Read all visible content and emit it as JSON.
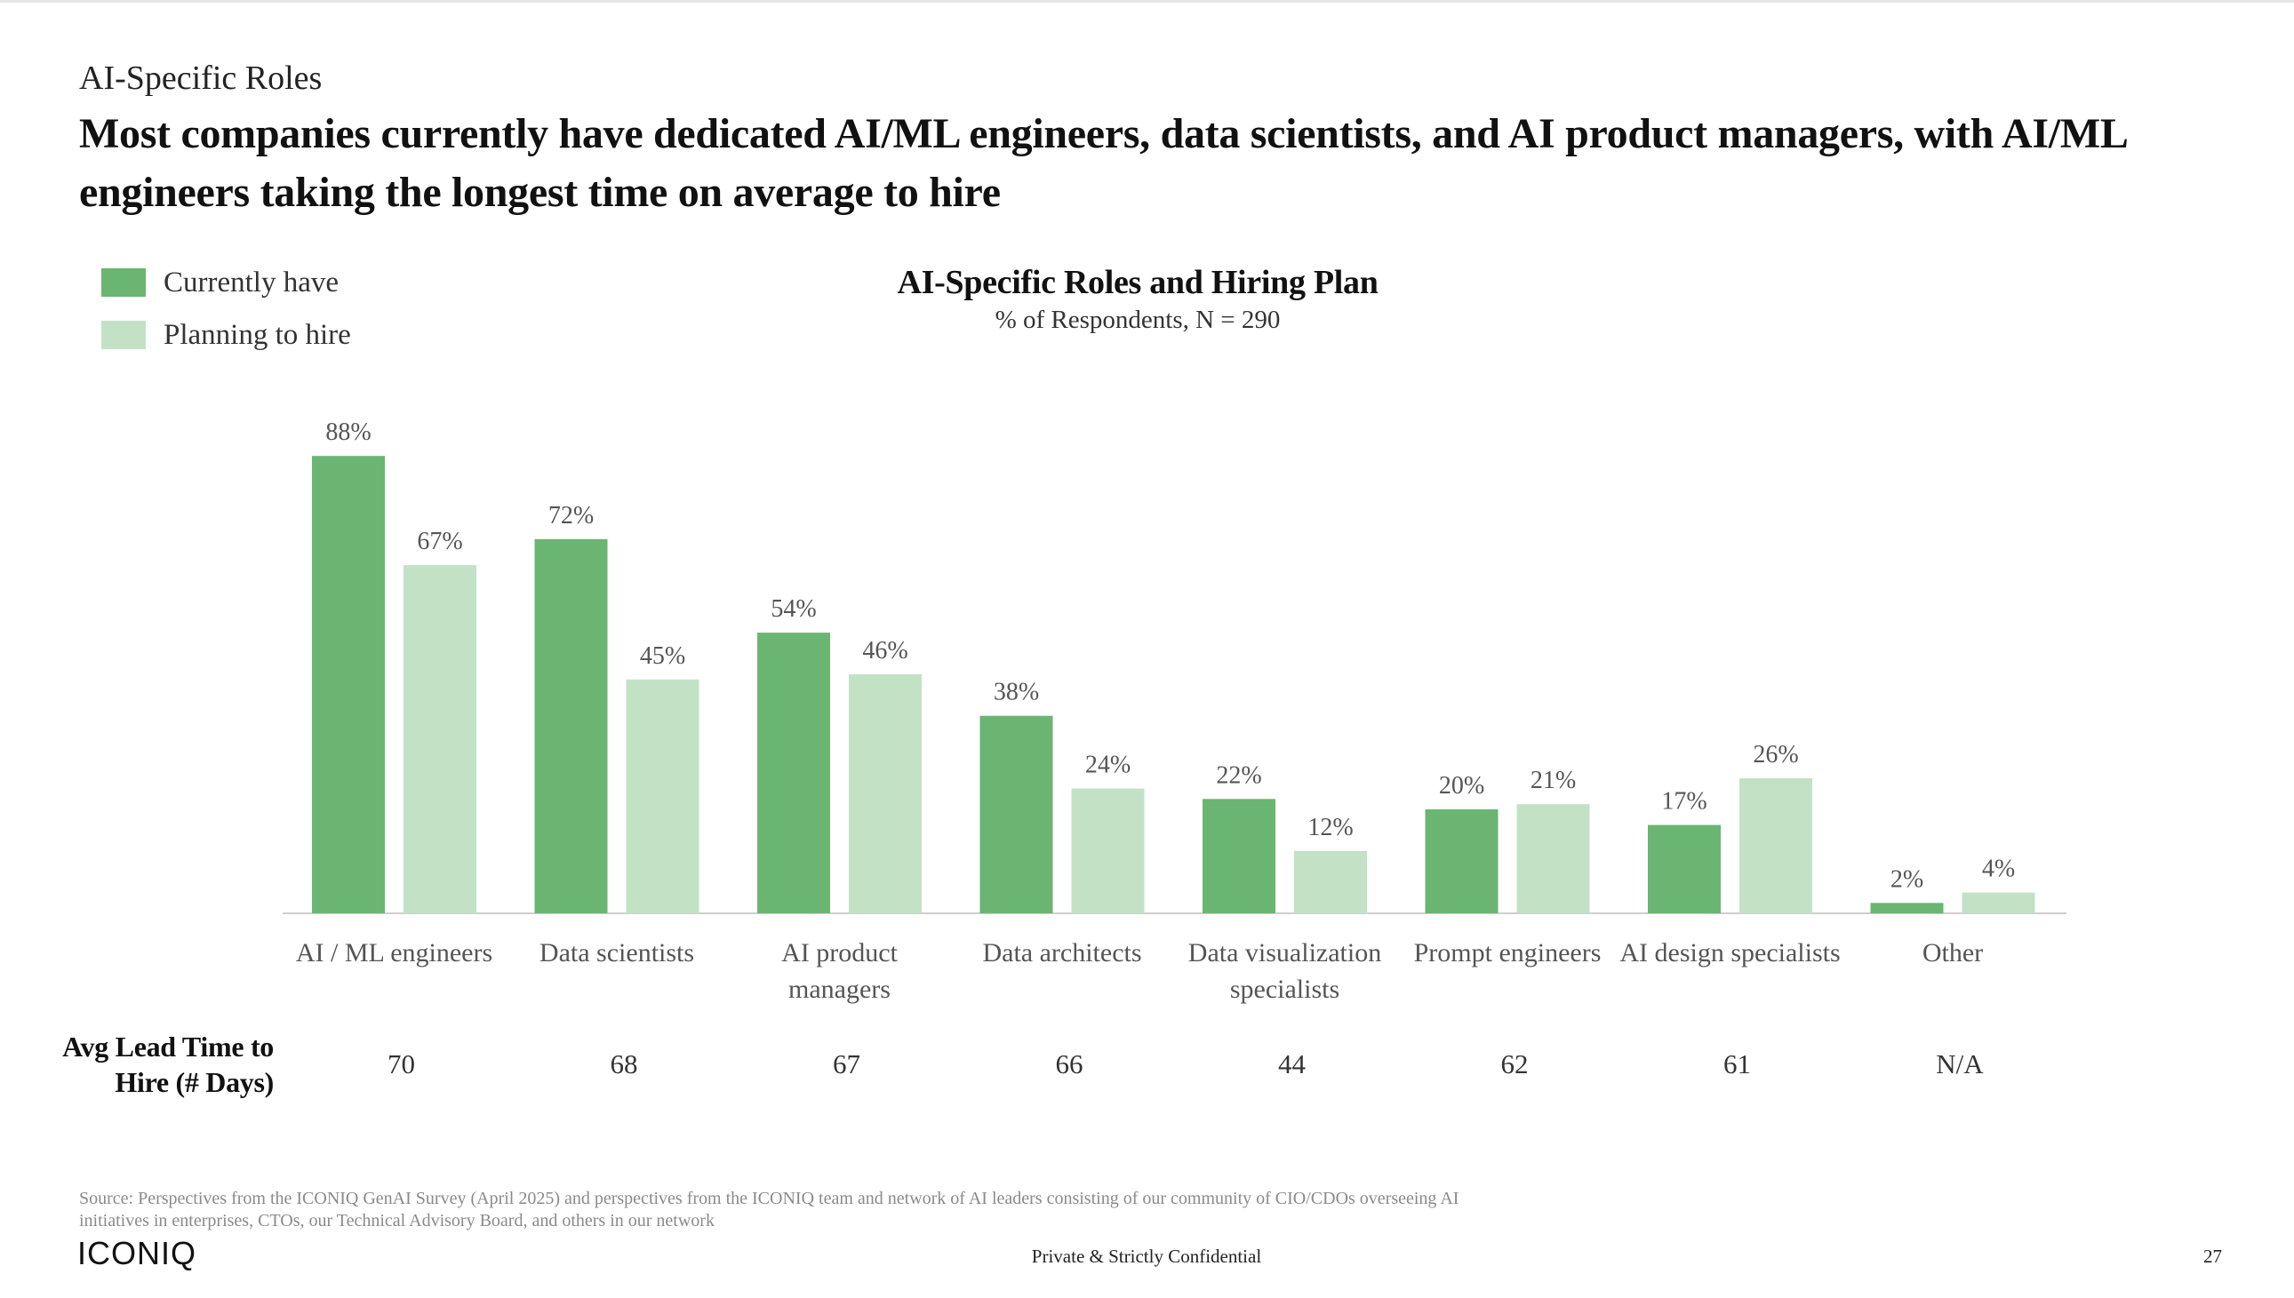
{
  "header": {
    "eyebrow": "AI-Specific Roles",
    "headline": "Most companies currently have dedicated AI/ML engineers, data scientists, and AI product managers, with AI/ML engineers taking the longest time on average to hire"
  },
  "chart_data": {
    "type": "bar",
    "title": "AI-Specific Roles and Hiring Plan",
    "subtitle": "% of Respondents, N = 290",
    "categories": [
      [
        "AI / ML engineers"
      ],
      [
        "Data scientists"
      ],
      [
        "AI product",
        "managers"
      ],
      [
        "Data architects"
      ],
      [
        "Data visualization",
        "specialists"
      ],
      [
        "Prompt engineers"
      ],
      [
        "AI design specialists"
      ],
      [
        "Other"
      ]
    ],
    "series": [
      {
        "name": "Currently have",
        "color": "#6bb572",
        "values": [
          88,
          72,
          54,
          38,
          22,
          20,
          17,
          2
        ]
      },
      {
        "name": "Planning to hire",
        "color": "#c3e2c5",
        "values": [
          67,
          45,
          46,
          24,
          12,
          21,
          26,
          4
        ]
      }
    ],
    "value_suffix": "%",
    "ylim": [
      0,
      100
    ],
    "grid": false,
    "legend_position": "top-left",
    "lead_time": {
      "label_line1": "Avg Lead Time to",
      "label_line2": "Hire (# Days)",
      "values": [
        "70",
        "68",
        "67",
        "66",
        "44",
        "62",
        "61",
        "N/A"
      ]
    }
  },
  "footer": {
    "source": "Source: Perspectives from the ICONIQ GenAI Survey (April 2025) and perspectives from the ICONIQ team and network of AI leaders consisting of our community of CIO/CDOs overseeing AI initiatives in enterprises, CTOs, our Technical Advisory Board, and others in our network",
    "logo": "ICONIQ",
    "confidential": "Private & Strictly Confidential",
    "page_number": "27"
  }
}
